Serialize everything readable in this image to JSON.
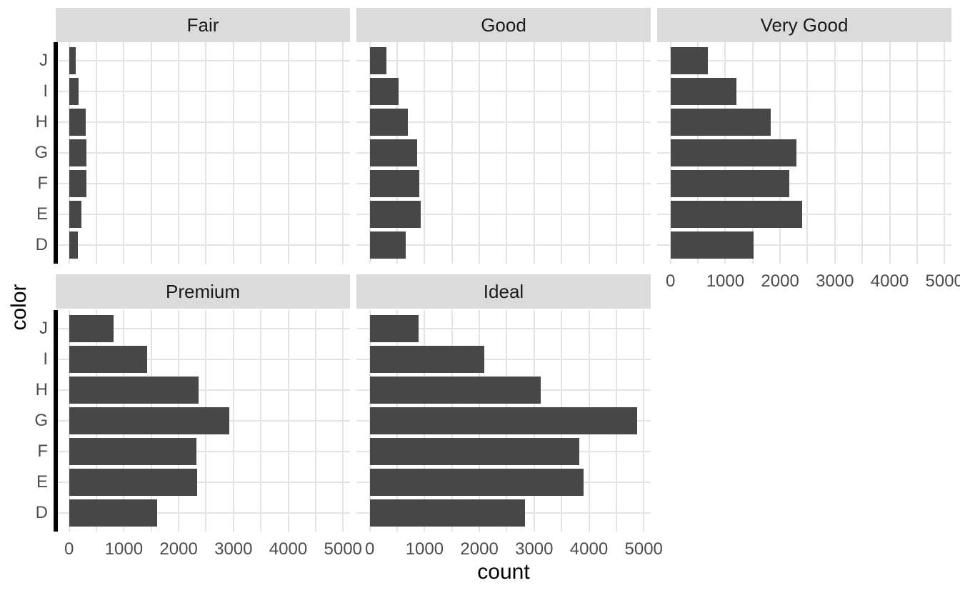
{
  "chart_data": {
    "type": "bar",
    "orientation": "horizontal",
    "xlabel": "count",
    "ylabel": "color",
    "categories_top_to_bottom": [
      "J",
      "I",
      "H",
      "G",
      "F",
      "E",
      "D"
    ],
    "x_major_ticks": [
      0,
      1000,
      2000,
      3000,
      4000,
      5000
    ],
    "x_minor_ticks": [
      500,
      1500,
      2500,
      3500,
      4500
    ],
    "x_range_expanded": [
      -244,
      5128
    ],
    "grid": "on",
    "legend": "none",
    "facets": [
      {
        "label": "Fair",
        "row": 0,
        "col": 0,
        "values": [
          119,
          175,
          303,
          314,
          312,
          224,
          163
        ]
      },
      {
        "label": "Good",
        "row": 0,
        "col": 1,
        "values": [
          307,
          522,
          702,
          871,
          909,
          933,
          662
        ]
      },
      {
        "label": "Very Good",
        "row": 0,
        "col": 2,
        "values": [
          678,
          1204,
          1824,
          2299,
          2164,
          2400,
          1513
        ]
      },
      {
        "label": "Premium",
        "row": 1,
        "col": 0,
        "values": [
          808,
          1428,
          2360,
          2924,
          2331,
          2337,
          1603
        ]
      },
      {
        "label": "Ideal",
        "row": 1,
        "col": 1,
        "values": [
          896,
          2093,
          3115,
          4884,
          3826,
          3903,
          2834
        ]
      }
    ],
    "style": {
      "bar_color": "#474747",
      "strip_background": "#DBDBDB",
      "strip_text_color": "#1A1A1A",
      "grid_color": "#E4E4E4",
      "tick_label_color": "#4D4D4D",
      "axis_title_color": "#000000",
      "axis_line_color": "#000000",
      "panel_background": "#FFFFFF"
    }
  }
}
